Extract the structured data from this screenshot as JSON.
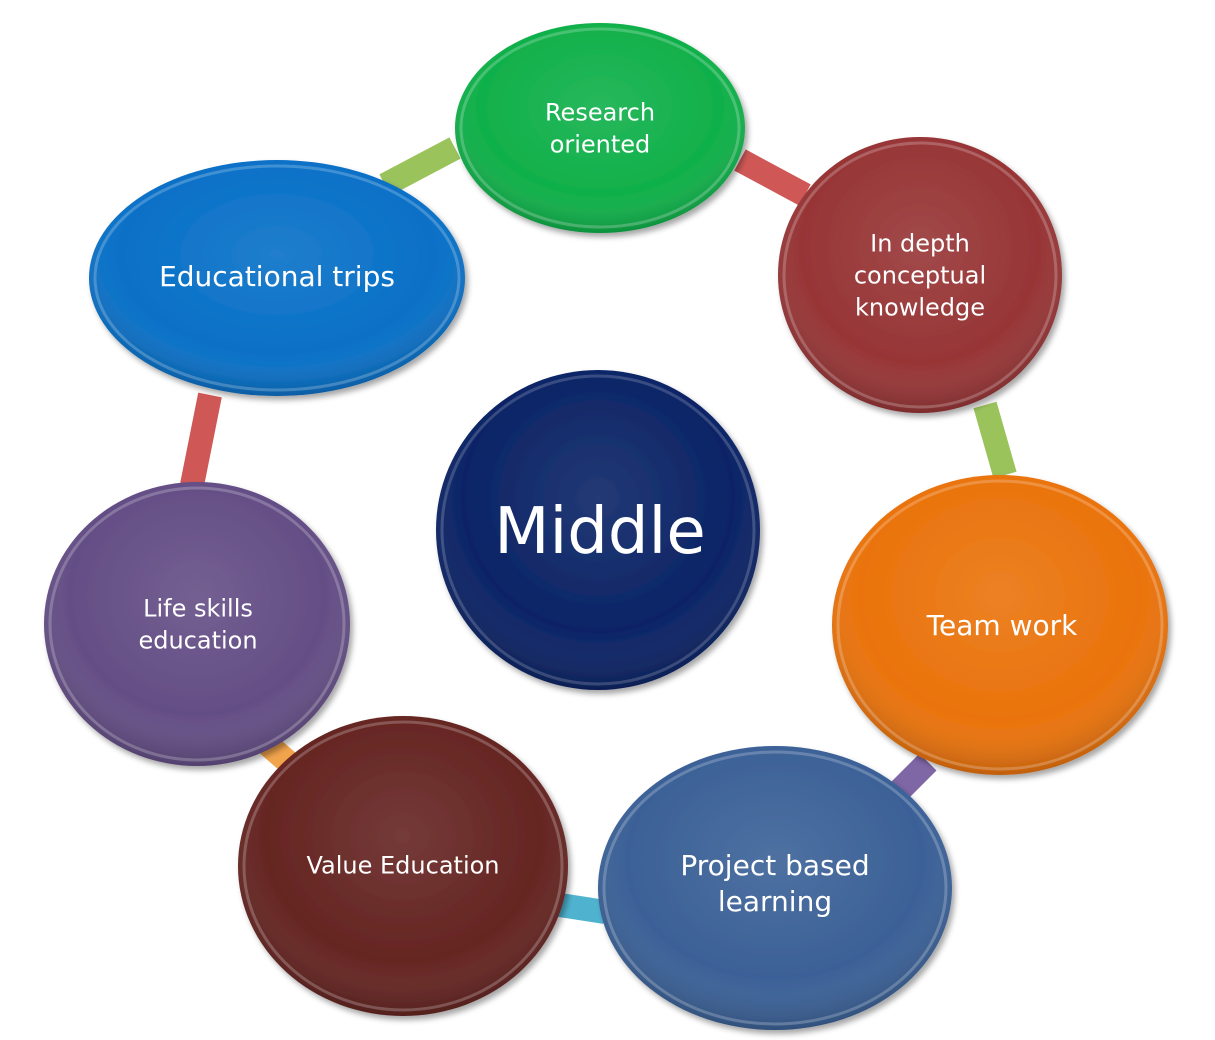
{
  "center": {
    "label": "Middle",
    "color": "#0b2466"
  },
  "nodes": [
    {
      "lines": [
        "Research",
        "oriented"
      ],
      "color": "#10b04a"
    },
    {
      "lines": [
        "In depth",
        "conceptual",
        "knowledge"
      ],
      "color": "#973536"
    },
    {
      "lines": [
        "Team work"
      ],
      "color": "#ea730c"
    },
    {
      "lines": [
        "Project based",
        "learning"
      ],
      "color": "#3b6197"
    },
    {
      "lines": [
        "Value Education"
      ],
      "color": "#652522"
    },
    {
      "lines": [
        "Life skills",
        "education"
      ],
      "color": "#644e85"
    },
    {
      "lines": [
        "Educational trips"
      ],
      "color": "#0870c7"
    }
  ],
  "connectors": [
    {
      "name": "connector-research-indepth",
      "color": "#cf5856"
    },
    {
      "name": "connector-indepth-teamwork",
      "color": "#9bc35c"
    },
    {
      "name": "connector-teamwork-project",
      "color": "#7f67a6"
    },
    {
      "name": "connector-project-value",
      "color": "#4fb3cf"
    },
    {
      "name": "connector-value-lifeskills",
      "color": "#f1a44c"
    },
    {
      "name": "connector-lifeskills-trips",
      "color": "#cf5856"
    },
    {
      "name": "connector-trips-research",
      "color": "#9bc35c"
    }
  ]
}
